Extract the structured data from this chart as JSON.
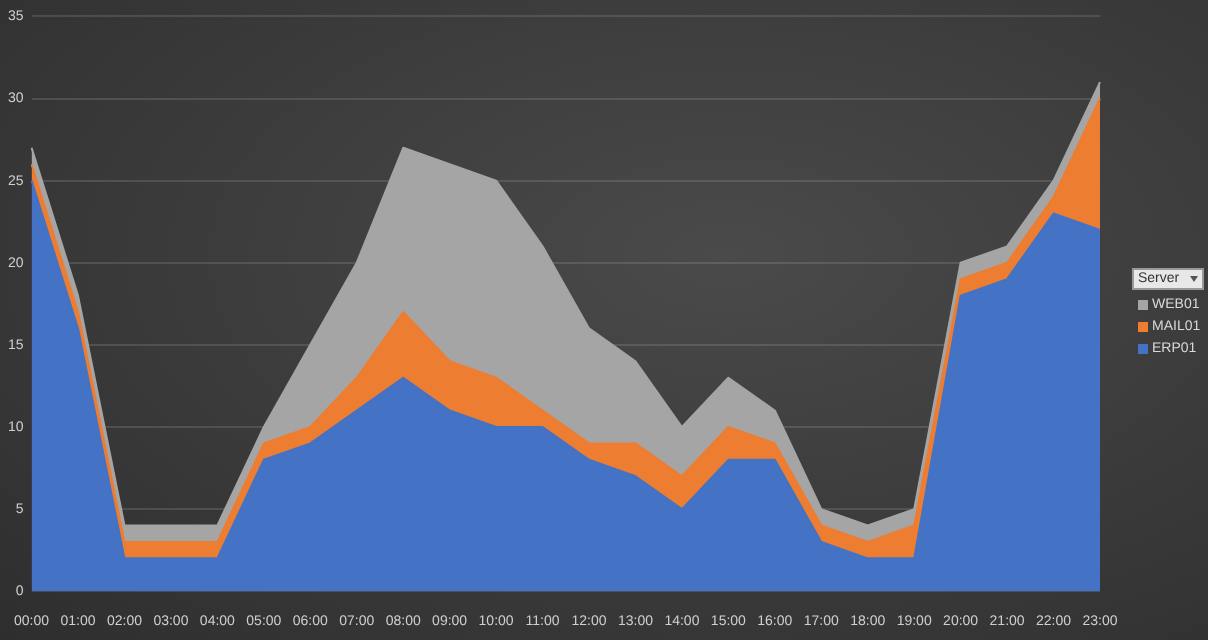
{
  "chart_data": {
    "type": "area",
    "stacked": true,
    "legend_title": "Server",
    "legend": "right",
    "grid": "y",
    "marker": "none",
    "categories": [
      "00:00",
      "01:00",
      "02:00",
      "03:00",
      "04:00",
      "05:00",
      "06:00",
      "07:00",
      "08:00",
      "09:00",
      "10:00",
      "11:00",
      "12:00",
      "13:00",
      "14:00",
      "15:00",
      "16:00",
      "17:00",
      "18:00",
      "19:00",
      "20:00",
      "21:00",
      "22:00",
      "23:00"
    ],
    "ylim": [
      0,
      35
    ],
    "yticks": [
      0,
      5,
      10,
      15,
      20,
      25,
      30,
      35
    ],
    "series": [
      {
        "name": "ERP01",
        "color": "#4472c4",
        "values": [
          25,
          16,
          2,
          2,
          2,
          8,
          9,
          11,
          13,
          11,
          10,
          10,
          8,
          7,
          5,
          8,
          8,
          3,
          2,
          2,
          18,
          19,
          23,
          22
        ]
      },
      {
        "name": "MAIL01",
        "color": "#ed7d31",
        "values": [
          1,
          1,
          1,
          1,
          1,
          1,
          1,
          2,
          4,
          3,
          3,
          1,
          1,
          2,
          2,
          2,
          1,
          1,
          1,
          2,
          1,
          1,
          1,
          8
        ]
      },
      {
        "name": "WEB01",
        "color": "#a5a5a5",
        "values": [
          1,
          1,
          1,
          1,
          1,
          1,
          5,
          7,
          10,
          12,
          12,
          10,
          7,
          5,
          3,
          3,
          2,
          1,
          1,
          1,
          1,
          1,
          1,
          1
        ]
      }
    ]
  }
}
